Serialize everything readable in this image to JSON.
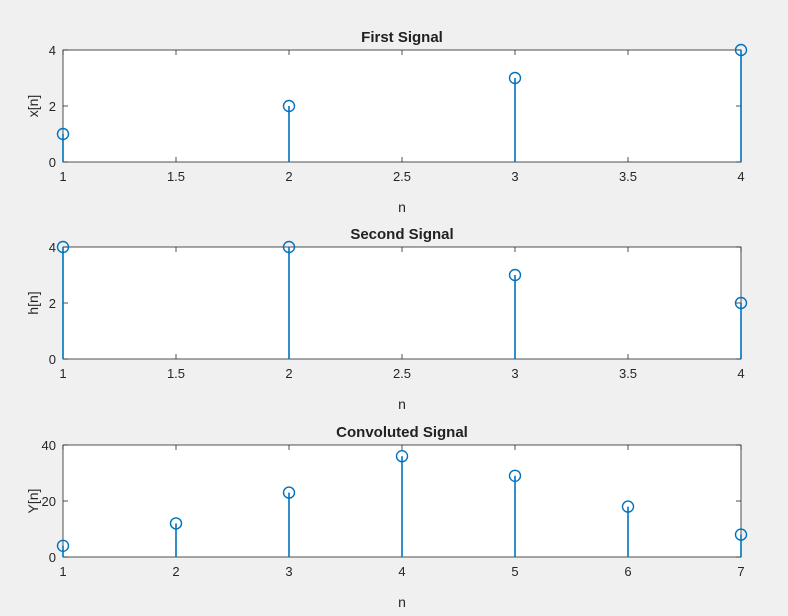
{
  "chart_data": [
    {
      "type": "stem",
      "title": "First Signal",
      "xlabel": "n",
      "ylabel": "x[n]",
      "x": [
        1,
        2,
        3,
        4
      ],
      "values": [
        1,
        2,
        3,
        4
      ],
      "xlim": [
        1,
        4
      ],
      "ylim": [
        0,
        4
      ],
      "xticks": [
        "1",
        "1.5",
        "2",
        "2.5",
        "3",
        "3.5",
        "4"
      ],
      "yticks": [
        "0",
        "2",
        "4"
      ],
      "grid": false,
      "color": "#0072BD"
    },
    {
      "type": "stem",
      "title": "Second Signal",
      "xlabel": "n",
      "ylabel": "h[n]",
      "x": [
        1,
        2,
        3,
        4
      ],
      "values": [
        4,
        4,
        3,
        2
      ],
      "xlim": [
        1,
        4
      ],
      "ylim": [
        0,
        4
      ],
      "xticks": [
        "1",
        "1.5",
        "2",
        "2.5",
        "3",
        "3.5",
        "4"
      ],
      "yticks": [
        "0",
        "2",
        "4"
      ],
      "grid": false,
      "color": "#0072BD"
    },
    {
      "type": "stem",
      "title": "Convoluted Signal",
      "xlabel": "n",
      "ylabel": "Y[n]",
      "x": [
        1,
        2,
        3,
        4,
        5,
        6,
        7
      ],
      "values": [
        4,
        12,
        23,
        36,
        29,
        18,
        8
      ],
      "xlim": [
        1,
        7
      ],
      "ylim": [
        0,
        40
      ],
      "xticks": [
        "1",
        "2",
        "3",
        "4",
        "5",
        "6",
        "7"
      ],
      "yticks": [
        "0",
        "20",
        "40"
      ],
      "grid": false,
      "color": "#0072BD"
    }
  ]
}
